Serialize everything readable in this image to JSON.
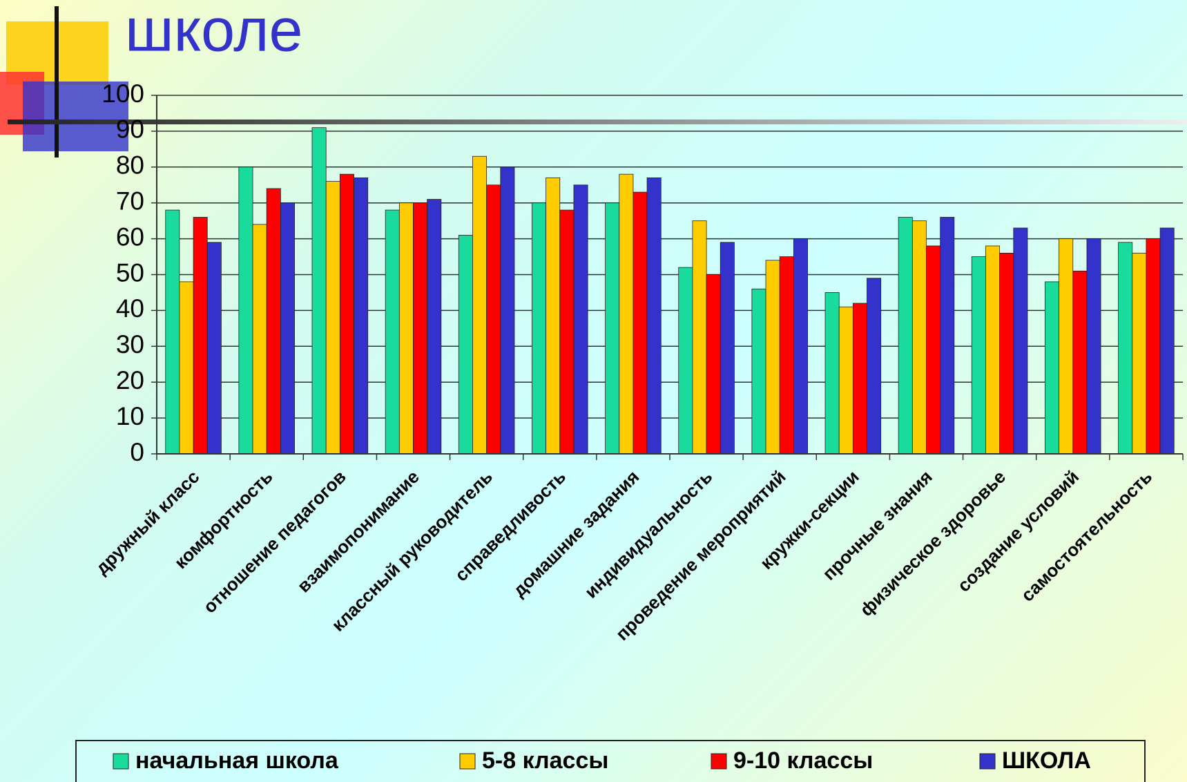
{
  "chart_data": {
    "type": "bar",
    "title": "школе",
    "categories": [
      "дружный класс",
      "комфортность",
      "отношение педагогов",
      "взаимопонимание",
      "классный руководитель",
      "справедливость",
      "домашние задания",
      "индивидуальность",
      "проведение мероприятий",
      "кружки-секции",
      "прочные знания",
      "физическое здоровье",
      "создание условий",
      "самостоятельность"
    ],
    "series": [
      {
        "name": "начальная школа",
        "color": "#19dc9c",
        "values": [
          68,
          80,
          91,
          68,
          61,
          70,
          70,
          52,
          46,
          45,
          66,
          55,
          48,
          59
        ]
      },
      {
        "name": "5-8 классы",
        "color": "#ffcc00",
        "values": [
          48,
          64,
          76,
          70,
          83,
          77,
          78,
          65,
          54,
          41,
          65,
          58,
          60,
          56
        ]
      },
      {
        "name": "9-10 классы",
        "color": "#ff0000",
        "values": [
          66,
          74,
          78,
          70,
          75,
          68,
          73,
          50,
          55,
          42,
          58,
          56,
          51,
          60
        ]
      },
      {
        "name": "ШКОЛА",
        "color": "#3333cc",
        "values": [
          59,
          70,
          77,
          71,
          80,
          75,
          77,
          59,
          60,
          49,
          66,
          63,
          60,
          63
        ]
      }
    ],
    "ylim": [
      0,
      100
    ],
    "yticks": [
      0,
      10,
      20,
      30,
      40,
      50,
      60,
      70,
      80,
      90,
      100
    ],
    "grid": true,
    "legend": "bottom"
  }
}
